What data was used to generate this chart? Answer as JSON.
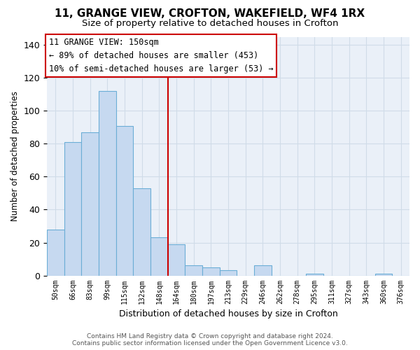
{
  "title": "11, GRANGE VIEW, CROFTON, WAKEFIELD, WF4 1RX",
  "subtitle": "Size of property relative to detached houses in Crofton",
  "xlabel": "Distribution of detached houses by size in Crofton",
  "ylabel": "Number of detached properties",
  "bar_labels": [
    "50sqm",
    "66sqm",
    "83sqm",
    "99sqm",
    "115sqm",
    "132sqm",
    "148sqm",
    "164sqm",
    "180sqm",
    "197sqm",
    "213sqm",
    "229sqm",
    "246sqm",
    "262sqm",
    "278sqm",
    "295sqm",
    "311sqm",
    "327sqm",
    "343sqm",
    "360sqm",
    "376sqm"
  ],
  "bar_values": [
    28,
    81,
    87,
    112,
    91,
    53,
    23,
    19,
    6,
    5,
    3,
    0,
    6,
    0,
    0,
    1,
    0,
    0,
    0,
    1,
    0
  ],
  "bar_color": "#c6d9f0",
  "bar_edge_color": "#6baed6",
  "vline_x": 6.5,
  "vline_color": "#cc0000",
  "ylim": [
    0,
    145
  ],
  "yticks": [
    0,
    20,
    40,
    60,
    80,
    100,
    120,
    140
  ],
  "annotation_title": "11 GRANGE VIEW: 150sqm",
  "annotation_line1": "← 89% of detached houses are smaller (453)",
  "annotation_line2": "10% of semi-detached houses are larger (53) →",
  "annotation_box_color": "#ffffff",
  "annotation_box_edge_color": "#cc0000",
  "footer_line1": "Contains HM Land Registry data © Crown copyright and database right 2024.",
  "footer_line2": "Contains public sector information licensed under the Open Government Licence v3.0.",
  "background_color": "#ffffff",
  "grid_color": "#d0dce8",
  "title_fontsize": 11,
  "subtitle_fontsize": 9.5
}
